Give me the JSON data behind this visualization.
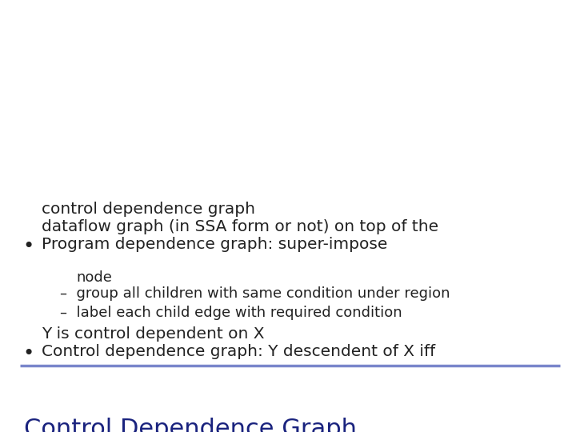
{
  "title": "Control Dependence Graph",
  "title_color": "#1a237e",
  "title_fontsize": 22,
  "separator_color": "#7986cb",
  "background_color": "#ffffff",
  "bullet1_line1": "Control dependence graph: Y descendent of X iff",
  "bullet1_line2": "Y is control dependent on X",
  "sub1": "–  label each child edge with required condition",
  "sub2_line1": "–  group all children with same condition under region",
  "sub2_line2": "   node",
  "bullet2_line1": "Program dependence graph: super-impose",
  "bullet2_line2": "dataflow graph (in SSA form or not) on top of the",
  "bullet2_line3": "control dependence graph",
  "text_color": "#222222",
  "bullet_fontsize": 14.5,
  "sub_fontsize": 13.0,
  "bullet_symbol": "•"
}
